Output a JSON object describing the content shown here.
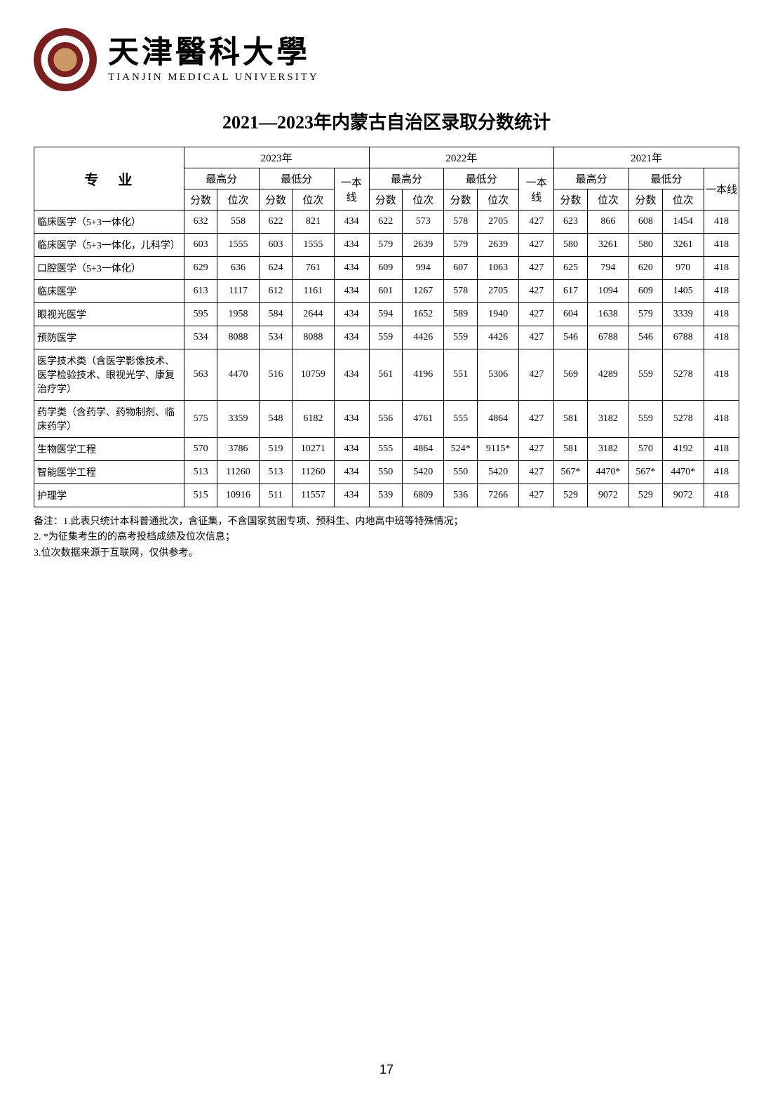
{
  "logo": {
    "cn": "天津醫科大學",
    "en": "TIANJIN MEDICAL UNIVERSITY"
  },
  "title": "2021—2023年内蒙古自治区录取分数统计",
  "header": {
    "major": "专业",
    "years": [
      "2023年",
      "2022年",
      "2021年"
    ],
    "max": "最高分",
    "min": "最低分",
    "line": "一本线",
    "score": "分数",
    "rank": "位次"
  },
  "rows": [
    {
      "major": "临床医学（5+3一体化）",
      "d": [
        632,
        558,
        622,
        821,
        434,
        622,
        573,
        578,
        2705,
        427,
        623,
        866,
        608,
        1454,
        418
      ]
    },
    {
      "major": "临床医学（5+3一体化，儿科学）",
      "d": [
        603,
        1555,
        603,
        1555,
        434,
        579,
        2639,
        579,
        2639,
        427,
        580,
        3261,
        580,
        3261,
        418
      ]
    },
    {
      "major": "口腔医学（5+3一体化）",
      "d": [
        629,
        636,
        624,
        761,
        434,
        609,
        994,
        607,
        1063,
        427,
        625,
        794,
        620,
        970,
        418
      ]
    },
    {
      "major": "临床医学",
      "d": [
        613,
        1117,
        612,
        1161,
        434,
        601,
        1267,
        578,
        2705,
        427,
        617,
        1094,
        609,
        1405,
        418
      ]
    },
    {
      "major": "眼视光医学",
      "d": [
        595,
        1958,
        584,
        2644,
        434,
        594,
        1652,
        589,
        1940,
        427,
        604,
        1638,
        579,
        3339,
        418
      ]
    },
    {
      "major": "预防医学",
      "d": [
        534,
        8088,
        534,
        8088,
        434,
        559,
        4426,
        559,
        4426,
        427,
        546,
        6788,
        546,
        6788,
        418
      ]
    },
    {
      "major": "医学技术类（含医学影像技术、医学检验技术、眼视光学、康复治疗学）",
      "d": [
        563,
        4470,
        516,
        10759,
        434,
        561,
        4196,
        551,
        5306,
        427,
        569,
        4289,
        559,
        5278,
        418
      ]
    },
    {
      "major": "药学类（含药学、药物制剂、临床药学）",
      "d": [
        575,
        3359,
        548,
        6182,
        434,
        556,
        4761,
        555,
        4864,
        427,
        581,
        3182,
        559,
        5278,
        418
      ]
    },
    {
      "major": "生物医学工程",
      "d": [
        570,
        3786,
        519,
        10271,
        434,
        555,
        4864,
        "524*",
        "9115*",
        427,
        581,
        3182,
        570,
        4192,
        418
      ]
    },
    {
      "major": "智能医学工程",
      "d": [
        513,
        11260,
        513,
        11260,
        434,
        550,
        5420,
        550,
        5420,
        427,
        "567*",
        "4470*",
        "567*",
        "4470*",
        418
      ]
    },
    {
      "major": "护理学",
      "d": [
        515,
        10916,
        511,
        11557,
        434,
        539,
        6809,
        536,
        7266,
        427,
        529,
        9072,
        529,
        9072,
        418
      ]
    }
  ],
  "notes": [
    "备注：1.此表只统计本科普通批次，含征集，不含国家贫困专项、预科生、内地高中班等特殊情况；",
    "2. *为征集考生的的高考投档成绩及位次信息；",
    "3.位次数据来源于互联网，仅供参考。"
  ],
  "page_number": "17",
  "style": {
    "border_color": "#000000",
    "bg_color": "#ffffff",
    "title_font": "KaiTi",
    "title_size_pt": 20,
    "body_size_pt": 11
  }
}
